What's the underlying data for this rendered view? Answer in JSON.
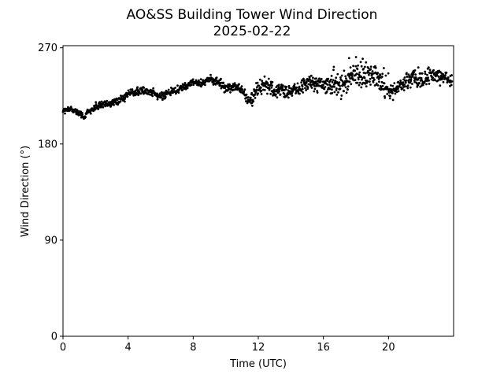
{
  "chart_data": {
    "type": "scatter",
    "title": "AO&SS Building Tower Wind Direction",
    "subtitle": "2025-02-22",
    "xlabel": "Time (UTC)",
    "ylabel": "Wind Direction (°)",
    "xlim": [
      0,
      24
    ],
    "ylim": [
      0,
      272
    ],
    "x_ticks": [
      0,
      4,
      8,
      12,
      16,
      20
    ],
    "x_tick_labels": [
      "0",
      "4",
      "8",
      "12",
      "16",
      "20"
    ],
    "y_ticks": [
      0,
      90,
      180,
      270
    ],
    "y_tick_labels": [
      "0",
      "90",
      "180",
      "270"
    ],
    "grid": false,
    "marker_color": "#000000",
    "series_trend": {
      "hours": [
        0,
        0.5,
        1.0,
        1.3,
        1.5,
        2.0,
        2.5,
        3.0,
        3.5,
        4.0,
        4.5,
        5.0,
        5.5,
        6.0,
        6.5,
        7.0,
        7.5,
        8.0,
        8.5,
        9.0,
        9.5,
        10.0,
        10.5,
        11.0,
        11.3,
        11.6,
        12.0,
        12.5,
        13.0,
        13.5,
        14.0,
        14.5,
        15.0,
        15.5,
        16.0,
        16.5,
        17.0,
        17.5,
        18.0,
        18.5,
        19.0,
        19.5,
        20.0,
        20.5,
        21.0,
        21.5,
        22.0,
        22.5,
        23.0,
        23.5,
        24.0
      ],
      "direction_deg": [
        211,
        213,
        209,
        204,
        210,
        214,
        217,
        219,
        221,
        227,
        229,
        230,
        228,
        224,
        227,
        230,
        235,
        238,
        237,
        241,
        238,
        232,
        233,
        232,
        221,
        222,
        232,
        236,
        228,
        231,
        229,
        232,
        238,
        236,
        234,
        234,
        232,
        240,
        243,
        245,
        246,
        240,
        228,
        233,
        236,
        242,
        240,
        244,
        243,
        242,
        236
      ],
      "noise_deg": [
        2,
        2,
        2,
        2,
        2,
        3,
        3,
        3,
        3,
        3,
        3,
        3,
        3,
        3,
        3,
        3,
        3,
        3,
        3,
        3,
        3,
        4,
        4,
        4,
        5,
        5,
        6,
        6,
        5,
        6,
        6,
        6,
        6,
        6,
        6,
        8,
        9,
        10,
        11,
        11,
        10,
        10,
        6,
        6,
        6,
        7,
        7,
        7,
        6,
        5,
        4
      ]
    },
    "point_count": 1400
  }
}
